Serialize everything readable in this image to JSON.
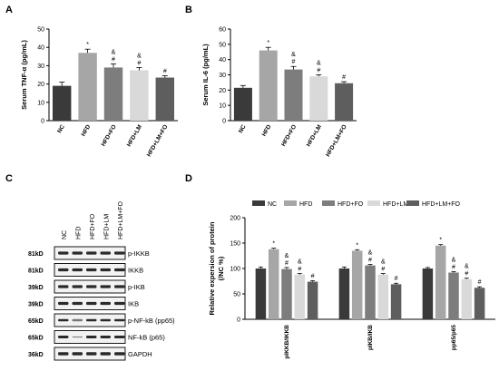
{
  "panels": {
    "A": "A",
    "B": "B",
    "C": "C",
    "D": "D"
  },
  "chart_data": [
    {
      "panel": "A",
      "type": "bar",
      "ylabel": "Serum TNF-α (pg/mL)",
      "categories": [
        "NC",
        "HFD",
        "HFD+FO",
        "HFD+LM",
        "HFD+LM+FO"
      ],
      "values": [
        19,
        37,
        29,
        27.5,
        23.5
      ],
      "errors": [
        2,
        2,
        2,
        1.5,
        1
      ],
      "significance": [
        "",
        "*",
        "&\n#",
        "&\n#",
        "#"
      ],
      "colors": [
        "#3a3a3a",
        "#a6a6a6",
        "#7d7d7d",
        "#d9d9d9",
        "#5e5e5e"
      ],
      "ylim": [
        0,
        50
      ],
      "yticks": [
        0,
        10,
        20,
        30,
        40,
        50
      ]
    },
    {
      "panel": "B",
      "type": "bar",
      "ylabel": "Serum IL-6 (pg/mL)",
      "categories": [
        "NC",
        "HFD",
        "HFD+FO",
        "HFD+LM",
        "HFD+LM+FO"
      ],
      "values": [
        21.5,
        46,
        33.5,
        29,
        24.5
      ],
      "errors": [
        1.5,
        2,
        2,
        1,
        1
      ],
      "significance": [
        "",
        "*",
        "&\n#",
        "&\n#",
        "#"
      ],
      "colors": [
        "#3a3a3a",
        "#a6a6a6",
        "#7d7d7d",
        "#d9d9d9",
        "#5e5e5e"
      ],
      "ylim": [
        0,
        60
      ],
      "yticks": [
        0,
        10,
        20,
        30,
        40,
        50,
        60
      ]
    },
    {
      "panel": "D",
      "type": "bar",
      "ylabel": "Relative expersion of protein\n(/NC %)",
      "categories": [
        "pIKKB/IKKB",
        "pIKB/IKB",
        "pp65/p65"
      ],
      "series": [
        {
          "name": "NC",
          "values": [
            100,
            100,
            100
          ],
          "errors": [
            3,
            3,
            2
          ],
          "color": "#3a3a3a",
          "sig": [
            "",
            "",
            ""
          ]
        },
        {
          "name": "HFD",
          "values": [
            138,
            135,
            145
          ],
          "errors": [
            2,
            2,
            2
          ],
          "color": "#a6a6a6",
          "sig": [
            "*",
            "*",
            "*"
          ]
        },
        {
          "name": "HFD+FO",
          "values": [
            99,
            106,
            92
          ],
          "errors": [
            3,
            2,
            2
          ],
          "color": "#7d7d7d",
          "sig": [
            "&\n#",
            "&\n#",
            "&\n#"
          ]
        },
        {
          "name": "HFD+LM",
          "values": [
            88,
            88,
            79
          ],
          "errors": [
            2,
            2,
            2
          ],
          "color": "#d9d9d9",
          "sig": [
            "&\n#",
            "&\n#",
            "&\n#"
          ]
        },
        {
          "name": "HFD+LM+FO",
          "values": [
            74,
            69,
            62
          ],
          "errors": [
            2,
            2,
            2
          ],
          "color": "#5e5e5e",
          "sig": [
            "#",
            "#",
            "#"
          ]
        }
      ],
      "ylim": [
        0,
        200
      ],
      "yticks": [
        0,
        50,
        100,
        150,
        200
      ],
      "legend": "top"
    }
  ],
  "blot": {
    "lanes": [
      "NC",
      "HFD",
      "HFD+FO",
      "HFD+LM",
      "HFD+LM+FO"
    ],
    "rows": [
      {
        "marker": "81kD",
        "label": "p-IKKB"
      },
      {
        "marker": "81kD",
        "label": "IKKB"
      },
      {
        "marker": "39kD",
        "label": "p-IKB"
      },
      {
        "marker": "39kD",
        "label": "IKB"
      },
      {
        "marker": "65kD",
        "label": "p-NF-kB (pp65)"
      },
      {
        "marker": "65kD",
        "label": "NF-kB (p65)"
      },
      {
        "marker": "36kD",
        "label": "GAPDH"
      }
    ]
  }
}
